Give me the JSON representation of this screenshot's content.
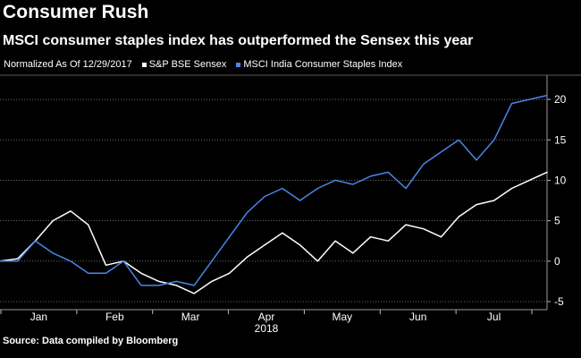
{
  "chart_data": {
    "type": "line",
    "title": "Consumer Rush",
    "subtitle": "MSCI consumer staples index has outperformed the Sensex this year",
    "legend_note": "Normalized As Of 12/29/2017",
    "xlabel": "2018",
    "ylabel": "",
    "ylim": [
      -6,
      23
    ],
    "yticks": [
      -5,
      0,
      5,
      10,
      15,
      20
    ],
    "xticks": [
      "Jan",
      "Feb",
      "Mar",
      "Apr",
      "May",
      "Jun",
      "Jul"
    ],
    "legend_position": "top-left",
    "x": [
      "Dec 29",
      "Jan 5",
      "Jan 12",
      "Jan 19",
      "Jan 26",
      "Feb 2",
      "Feb 9",
      "Feb 16",
      "Feb 23",
      "Mar 2",
      "Mar 9",
      "Mar 16",
      "Mar 23",
      "Mar 30",
      "Apr 6",
      "Apr 13",
      "Apr 20",
      "Apr 27",
      "May 4",
      "May 11",
      "May 18",
      "May 25",
      "Jun 1",
      "Jun 8",
      "Jun 15",
      "Jun 22",
      "Jun 29",
      "Jul 6",
      "Jul 13",
      "Jul 20",
      "Jul 27",
      "Aug 3"
    ],
    "series": [
      {
        "name": "S&P BSE Sensex",
        "color": "#ffffff",
        "values": [
          0,
          0.3,
          2.5,
          5,
          6.2,
          4.5,
          -0.5,
          0,
          -1.5,
          -2.5,
          -3,
          -4,
          -2.5,
          -1.5,
          0.5,
          2,
          3.5,
          2,
          0,
          2.5,
          1,
          3,
          2.5,
          4.5,
          4,
          3,
          5.5,
          7,
          7.5,
          9,
          10,
          11
        ]
      },
      {
        "name": "MSCI India Consumer Staples Index",
        "color": "#4a86e8",
        "values": [
          0,
          0,
          2.5,
          1,
          0,
          -1.5,
          -1.5,
          0,
          -3,
          -3,
          -2.5,
          -3,
          0,
          3,
          6,
          8,
          9,
          7.5,
          9,
          10,
          9.5,
          10.5,
          11,
          9,
          12,
          13.5,
          15,
          12.5,
          15,
          19.5,
          20,
          20.5
        ]
      }
    ]
  },
  "source": "Source: Data compiled by Bloomberg"
}
